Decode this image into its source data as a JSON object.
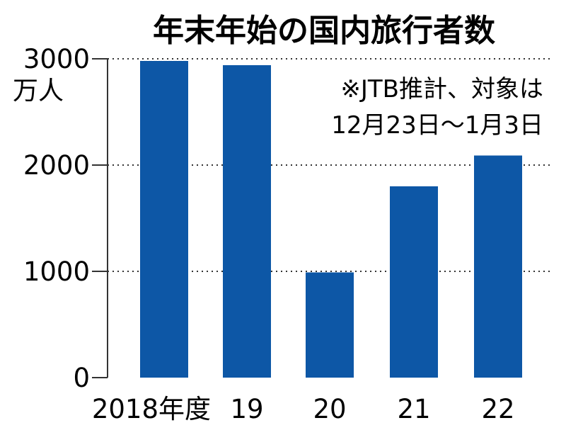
{
  "chart_data": {
    "type": "bar",
    "title": "年末年始の国内旅行者数",
    "ylabel": "万人",
    "xlabel": "",
    "categories": [
      "2018年度",
      "19",
      "20",
      "21",
      "22"
    ],
    "values": [
      2980,
      2940,
      990,
      1800,
      2090
    ],
    "ylim": [
      0,
      3000
    ],
    "yticks": [
      "0",
      "1000",
      "2000",
      "3000"
    ],
    "ytick_values": [
      0,
      1000,
      2000,
      3000
    ],
    "grid": true,
    "bar_color": "#0d57a6",
    "annotations": [
      "※JTB推計、対象は",
      "12月23日～1月3日"
    ]
  }
}
